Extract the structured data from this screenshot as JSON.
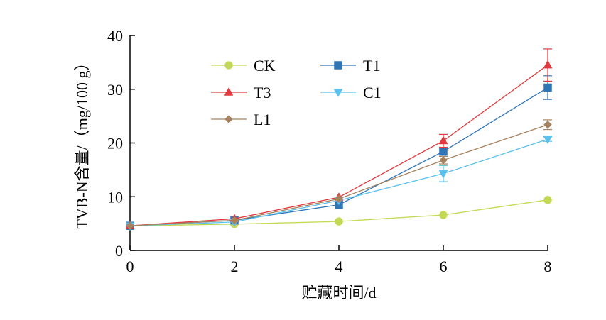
{
  "chart_data": {
    "type": "line",
    "x": [
      0,
      2,
      4,
      6,
      8
    ],
    "xlabel": "贮藏时间/d",
    "ylabel": "TVB-N含量/（mg/100 g）",
    "xlim": [
      0,
      8
    ],
    "ylim": [
      0,
      40
    ],
    "xticks": [
      0,
      2,
      4,
      6,
      8
    ],
    "yticks": [
      0,
      10,
      20,
      30,
      40
    ],
    "grid": false,
    "legend_position": "top-center",
    "series": [
      {
        "name": "CK",
        "color": "#c3d955",
        "marker": "circle",
        "values": [
          4.6,
          4.9,
          5.4,
          6.6,
          9.4
        ],
        "errors": [
          0,
          0,
          0,
          0,
          0
        ]
      },
      {
        "name": "T1",
        "color": "#2e75b6",
        "marker": "square",
        "values": [
          4.6,
          5.6,
          8.5,
          18.4,
          30.3
        ],
        "errors": [
          0,
          0,
          0,
          0.6,
          2.2
        ]
      },
      {
        "name": "T3",
        "color": "#e0393e",
        "marker": "triangle-up",
        "values": [
          4.6,
          5.9,
          9.9,
          20.4,
          34.5
        ],
        "errors": [
          0,
          0,
          0,
          1.2,
          3.0
        ]
      },
      {
        "name": "C1",
        "color": "#5bc0eb",
        "marker": "triangle-down",
        "values": [
          4.6,
          5.3,
          9.3,
          14.3,
          20.7
        ],
        "errors": [
          0,
          0,
          0,
          1.5,
          0.4
        ]
      },
      {
        "name": "L1",
        "color": "#a6825f",
        "marker": "diamond",
        "values": [
          4.6,
          5.6,
          9.6,
          16.8,
          23.4
        ],
        "errors": [
          0,
          0,
          0,
          0.7,
          0.9
        ]
      }
    ]
  }
}
